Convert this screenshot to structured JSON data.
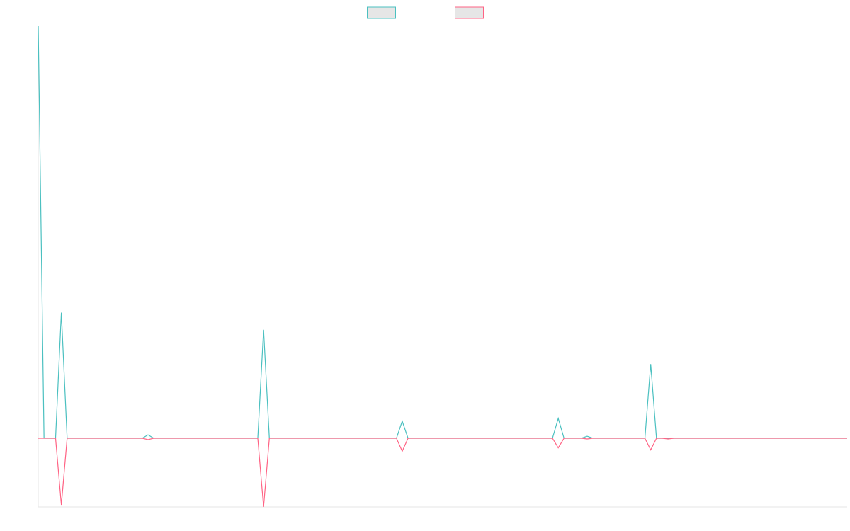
{
  "chart_data": {
    "type": "line",
    "title": "",
    "xlabel": "",
    "ylabel": "",
    "legend_position": "top-center",
    "grid": false,
    "ylim": [
      -100,
      600
    ],
    "xlim": [
      0,
      140
    ],
    "series": [
      {
        "name": "",
        "color": "#4bc0c0",
        "points": [
          [
            0,
            600
          ],
          [
            1,
            0
          ],
          [
            3,
            0
          ],
          [
            4,
            183
          ],
          [
            5,
            0
          ],
          [
            18,
            0
          ],
          [
            19,
            5
          ],
          [
            20,
            0
          ],
          [
            38,
            0
          ],
          [
            39,
            158
          ],
          [
            40,
            0
          ],
          [
            62,
            0
          ],
          [
            63,
            25
          ],
          [
            64,
            0
          ],
          [
            89,
            0
          ],
          [
            90,
            29
          ],
          [
            91,
            0
          ],
          [
            94,
            0
          ],
          [
            95,
            3
          ],
          [
            96,
            0
          ],
          [
            105,
            0
          ],
          [
            106,
            108
          ],
          [
            107,
            0
          ],
          [
            140,
            0
          ]
        ]
      },
      {
        "name": "",
        "color": "#ff6384",
        "points": [
          [
            0,
            0
          ],
          [
            3,
            0
          ],
          [
            4,
            -97
          ],
          [
            5,
            0
          ],
          [
            18,
            0
          ],
          [
            19,
            -2
          ],
          [
            20,
            0
          ],
          [
            38,
            0
          ],
          [
            39,
            -100
          ],
          [
            40,
            0
          ],
          [
            62,
            0
          ],
          [
            63,
            -19
          ],
          [
            64,
            0
          ],
          [
            89,
            0
          ],
          [
            90,
            -14
          ],
          [
            91,
            0
          ],
          [
            94,
            0
          ],
          [
            95,
            -1
          ],
          [
            96,
            0
          ],
          [
            105,
            0
          ],
          [
            106,
            -17
          ],
          [
            107,
            0
          ],
          [
            108,
            0
          ],
          [
            109,
            -1
          ],
          [
            110,
            0
          ],
          [
            140,
            0
          ]
        ]
      }
    ]
  }
}
